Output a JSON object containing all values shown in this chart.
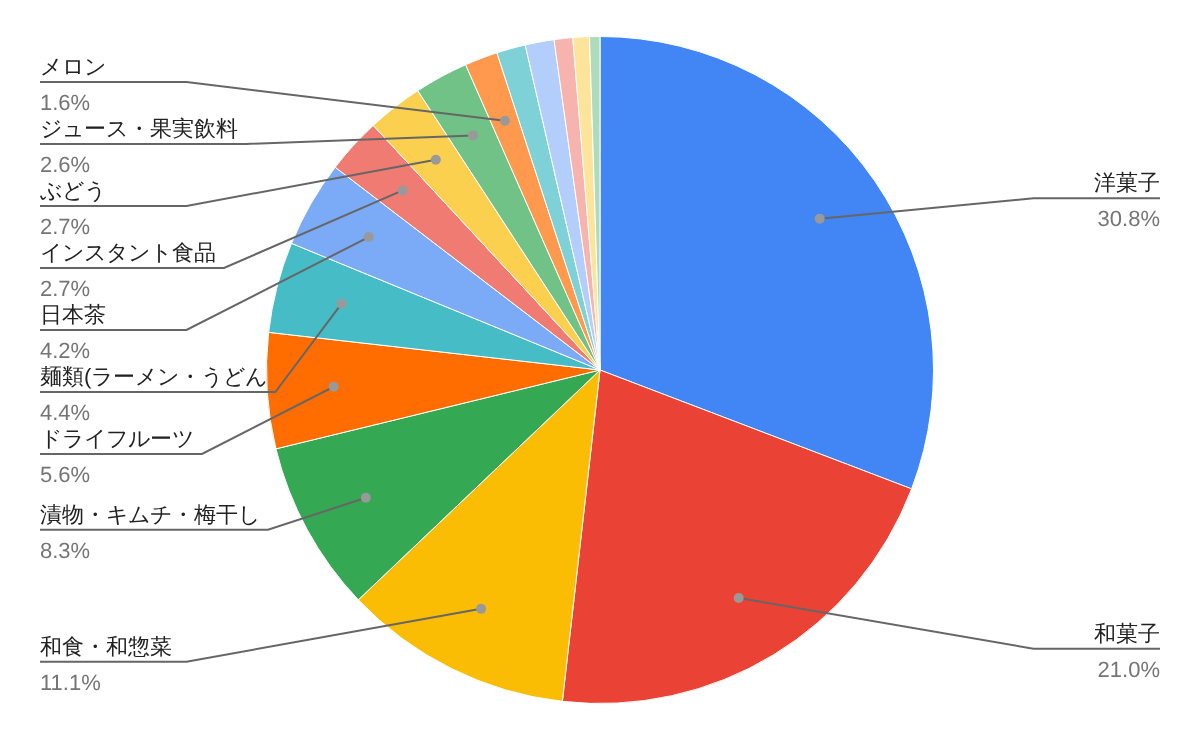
{
  "chart_data": {
    "type": "pie",
    "categories": [
      "洋菓子",
      "和菓子",
      "和食・和惣菜",
      "漬物・キムチ・梅干し",
      "ドライフルーツ",
      "麺類(ラーメン・うどん",
      "日本茶",
      "インスタント食品",
      "ぶどう",
      "ジュース・果実飲料",
      "メロン",
      null,
      null,
      null,
      null,
      null
    ],
    "values": [
      30.8,
      21.0,
      11.1,
      8.3,
      5.6,
      4.4,
      4.2,
      2.7,
      2.7,
      2.6,
      1.6,
      1.4,
      1.4,
      0.9,
      0.8,
      0.5
    ],
    "value_labels": [
      "30.8%",
      "21.0%",
      "11.1%",
      "8.3%",
      "5.6%",
      "4.4%",
      "4.2%",
      "2.7%",
      "2.7%",
      "2.6%",
      "1.6%",
      null,
      null,
      null,
      null,
      null
    ],
    "colors": [
      "#4285f4",
      "#ea4335",
      "#fbbc04",
      "#34a853",
      "#ff6d01",
      "#46bdc6",
      "#7baaf7",
      "#f07b72",
      "#fcd04f",
      "#71c287",
      "#ff994d",
      "#7ed1d7",
      "#b3cefb",
      "#f7b4ae",
      "#fde49b",
      "#aedcba"
    ],
    "legend": false
  }
}
